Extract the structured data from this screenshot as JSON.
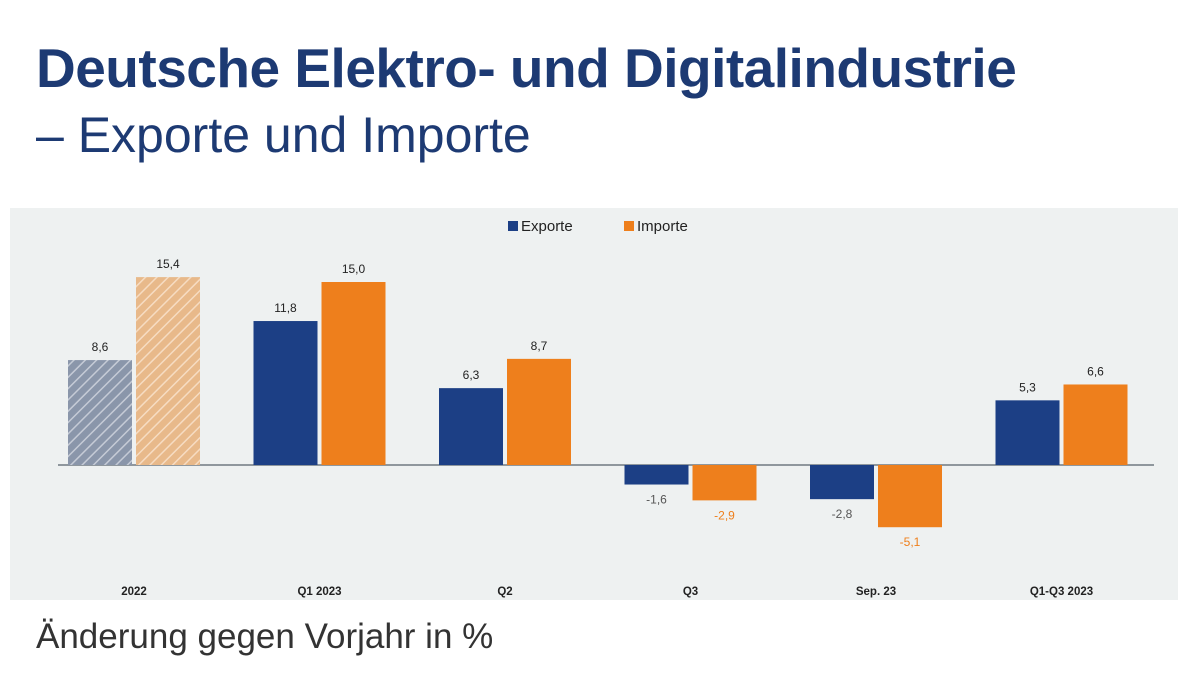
{
  "page": {
    "title_line1": "Deutsche Elektro- und Digitalindustrie",
    "title_line2": "– Exporte und Importe",
    "footnote": "Änderung gegen Vorjahr in %"
  },
  "colors": {
    "title": "#1d3a73",
    "exporte": "#1c3f85",
    "importe": "#ee7f1c",
    "exporte_hatched": "#8a96aa",
    "importe_hatched": "#e8b98a",
    "panel_bg": "#eef1f1"
  },
  "chart_data": {
    "type": "bar",
    "categories": [
      "2022",
      "Q1 2023",
      "Q2",
      "Q3",
      "Sep. 23",
      "Q1-Q3 2023"
    ],
    "series": [
      {
        "name": "Exporte",
        "values": [
          8.6,
          11.8,
          6.3,
          -1.6,
          -2.8,
          5.3
        ],
        "labels": [
          "8,6",
          "11,8",
          "6,3",
          "-1,6",
          "-2,8",
          "5,3"
        ]
      },
      {
        "name": "Importe",
        "values": [
          15.4,
          15.0,
          8.7,
          -2.9,
          -5.1,
          6.6
        ],
        "labels": [
          "15,4",
          "15,0",
          "8,7",
          "-2,9",
          "-5,1",
          "6,6"
        ]
      }
    ],
    "hatched_categories": [
      "2022"
    ],
    "legend_position": "top-center",
    "ylim": [
      -8,
      18
    ],
    "grid": false
  }
}
